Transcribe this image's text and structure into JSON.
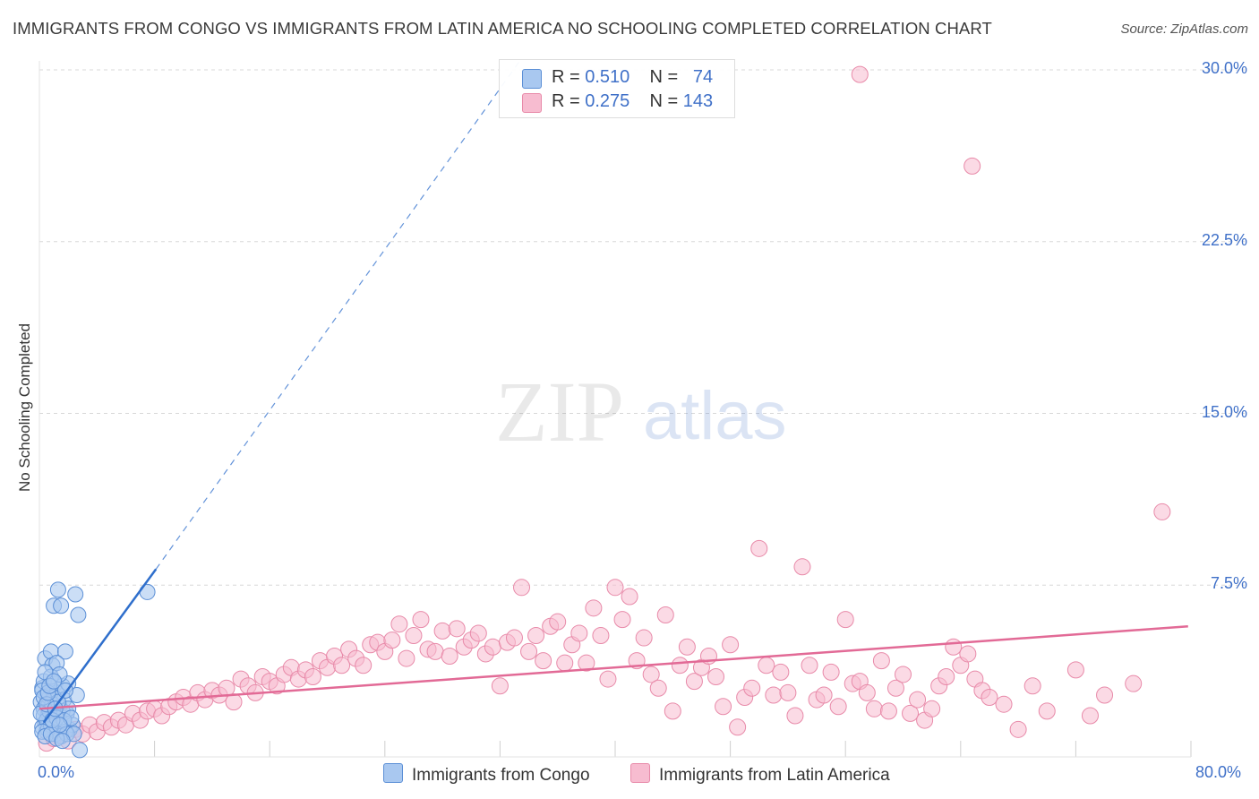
{
  "header": {
    "title": "IMMIGRANTS FROM CONGO VS IMMIGRANTS FROM LATIN AMERICA NO SCHOOLING COMPLETED CORRELATION CHART",
    "source": "Source: ZipAtlas.com"
  },
  "watermark": {
    "zip": "ZIP",
    "atlas": "atlas"
  },
  "legend": {
    "series": [
      {
        "r_label": "R =",
        "r_value": "0.510",
        "n_label": "N =",
        "n_value": "74"
      },
      {
        "r_label": "R =",
        "r_value": "0.275",
        "n_label": "N =",
        "n_value": "143"
      }
    ]
  },
  "colors": {
    "congo_fill": "#a9c8f0",
    "congo_stroke": "#5b8fd6",
    "congo_line": "#2f6fcc",
    "latam_fill": "#f7bcd0",
    "latam_stroke": "#e88aa9",
    "latam_line": "#e26a96",
    "grid": "#d8d8d8",
    "axis_text": "#3f70c8"
  },
  "chart_data": {
    "type": "scatter",
    "title": "IMMIGRANTS FROM CONGO VS IMMIGRANTS FROM LATIN AMERICA NO SCHOOLING COMPLETED CORRELATION CHART",
    "xlabel": "",
    "ylabel": "No Schooling Completed",
    "xlim": [
      0,
      80
    ],
    "ylim": [
      0,
      30
    ],
    "x_tick_labels": [
      "0.0%",
      "80.0%"
    ],
    "y_ticks": [
      7.5,
      15.0,
      22.5,
      30.0
    ],
    "y_tick_labels": [
      "7.5%",
      "15.0%",
      "22.5%",
      "30.0%"
    ],
    "grid": true,
    "legend_position": "bottom",
    "series": [
      {
        "name": "Immigrants from Congo",
        "R": 0.51,
        "N": 74,
        "trend": {
          "x": [
            0.3,
            8.1
          ],
          "y": [
            1.5,
            8.2
          ],
          "dashed_to": [
            33.5,
            30.5
          ]
        },
        "points": [
          [
            0.1,
            2.4
          ],
          [
            0.2,
            3.0
          ],
          [
            0.3,
            2.1
          ],
          [
            0.4,
            1.5
          ],
          [
            0.2,
            1.3
          ],
          [
            0.5,
            2.7
          ],
          [
            0.6,
            2.2
          ],
          [
            0.3,
            3.3
          ],
          [
            0.7,
            1.8
          ],
          [
            0.4,
            4.3
          ],
          [
            0.8,
            4.6
          ],
          [
            0.9,
            4.0
          ],
          [
            1.0,
            6.6
          ],
          [
            1.3,
            7.3
          ],
          [
            1.5,
            6.6
          ],
          [
            1.1,
            3.2
          ],
          [
            1.2,
            2.8
          ],
          [
            1.4,
            2.2
          ],
          [
            1.6,
            3.1
          ],
          [
            1.7,
            2.5
          ],
          [
            1.8,
            4.6
          ],
          [
            1.9,
            1.9
          ],
          [
            2.0,
            3.2
          ],
          [
            2.1,
            1.2
          ],
          [
            2.3,
            1.4
          ],
          [
            0.5,
            1.1
          ],
          [
            0.6,
            1.9
          ],
          [
            0.7,
            2.6
          ],
          [
            0.8,
            3.5
          ],
          [
            1.0,
            1.5
          ],
          [
            1.1,
            1.0
          ],
          [
            1.3,
            1.9
          ],
          [
            1.5,
            1.3
          ],
          [
            1.6,
            2.0
          ],
          [
            1.8,
            1.1
          ],
          [
            2.0,
            2.1
          ],
          [
            2.5,
            7.1
          ],
          [
            2.7,
            6.2
          ],
          [
            7.5,
            7.2
          ],
          [
            1.2,
            4.1
          ],
          [
            1.4,
            3.6
          ],
          [
            0.9,
            2.3
          ],
          [
            0.3,
            1.8
          ],
          [
            0.5,
            1.6
          ],
          [
            0.2,
            2.9
          ],
          [
            0.4,
            3.7
          ],
          [
            0.6,
            1.2
          ],
          [
            0.7,
            2.0
          ],
          [
            0.8,
            1.4
          ],
          [
            1.0,
            2.6
          ],
          [
            1.2,
            1.7
          ],
          [
            1.3,
            2.4
          ],
          [
            1.5,
            0.9
          ],
          [
            1.7,
            1.6
          ],
          [
            1.9,
            1.0
          ],
          [
            2.2,
            1.7
          ],
          [
            2.4,
            1.0
          ],
          [
            2.6,
            2.7
          ],
          [
            0.1,
            1.9
          ],
          [
            0.2,
            1.1
          ],
          [
            0.3,
            2.6
          ],
          [
            0.4,
            0.9
          ],
          [
            0.5,
            2.3
          ],
          [
            0.6,
            2.8
          ],
          [
            0.7,
            3.1
          ],
          [
            0.8,
            1.0
          ],
          [
            0.9,
            1.6
          ],
          [
            1.0,
            3.3
          ],
          [
            1.1,
            2.1
          ],
          [
            1.2,
            0.8
          ],
          [
            1.4,
            1.4
          ],
          [
            1.6,
            0.7
          ],
          [
            2.8,
            0.3
          ],
          [
            1.8,
            2.9
          ]
        ]
      },
      {
        "name": "Immigrants from Latin America",
        "R": 0.275,
        "N": 143,
        "trend": {
          "x": [
            0.0,
            79.8
          ],
          "y": [
            2.1,
            5.7
          ]
        },
        "points": [
          [
            0.5,
            0.6
          ],
          [
            1.0,
            0.8
          ],
          [
            1.5,
            1.0
          ],
          [
            2.0,
            0.7
          ],
          [
            2.5,
            1.2
          ],
          [
            3.0,
            1.0
          ],
          [
            3.5,
            1.4
          ],
          [
            4.0,
            1.1
          ],
          [
            4.5,
            1.5
          ],
          [
            5.0,
            1.3
          ],
          [
            5.5,
            1.6
          ],
          [
            6.0,
            1.4
          ],
          [
            6.5,
            1.9
          ],
          [
            7.0,
            1.6
          ],
          [
            7.5,
            2.0
          ],
          [
            8.0,
            2.1
          ],
          [
            8.5,
            1.8
          ],
          [
            9.0,
            2.2
          ],
          [
            9.5,
            2.4
          ],
          [
            10.0,
            2.6
          ],
          [
            10.5,
            2.3
          ],
          [
            11.0,
            2.8
          ],
          [
            11.5,
            2.5
          ],
          [
            12.0,
            2.9
          ],
          [
            12.5,
            2.7
          ],
          [
            13.0,
            3.0
          ],
          [
            13.5,
            2.4
          ],
          [
            14.0,
            3.4
          ],
          [
            14.5,
            3.1
          ],
          [
            15.0,
            2.8
          ],
          [
            15.5,
            3.5
          ],
          [
            16.0,
            3.3
          ],
          [
            16.5,
            3.1
          ],
          [
            17.0,
            3.6
          ],
          [
            17.5,
            3.9
          ],
          [
            18.0,
            3.4
          ],
          [
            18.5,
            3.8
          ],
          [
            19.0,
            3.5
          ],
          [
            19.5,
            4.2
          ],
          [
            20.0,
            3.9
          ],
          [
            20.5,
            4.4
          ],
          [
            21.0,
            4.0
          ],
          [
            21.5,
            4.7
          ],
          [
            22.0,
            4.3
          ],
          [
            22.5,
            4.0
          ],
          [
            23.0,
            4.9
          ],
          [
            23.5,
            5.0
          ],
          [
            24.0,
            4.6
          ],
          [
            24.5,
            5.1
          ],
          [
            25.0,
            5.8
          ],
          [
            25.5,
            4.3
          ],
          [
            26.0,
            5.3
          ],
          [
            26.5,
            6.0
          ],
          [
            27.0,
            4.7
          ],
          [
            27.5,
            4.6
          ],
          [
            28.0,
            5.5
          ],
          [
            28.5,
            4.4
          ],
          [
            29.0,
            5.6
          ],
          [
            29.5,
            4.8
          ],
          [
            30.0,
            5.1
          ],
          [
            30.5,
            5.4
          ],
          [
            31.0,
            4.5
          ],
          [
            31.5,
            4.8
          ],
          [
            32.0,
            3.1
          ],
          [
            32.5,
            5.0
          ],
          [
            33.0,
            5.2
          ],
          [
            33.5,
            7.4
          ],
          [
            34.0,
            4.6
          ],
          [
            34.5,
            5.3
          ],
          [
            35.0,
            4.2
          ],
          [
            35.5,
            5.7
          ],
          [
            36.0,
            5.9
          ],
          [
            36.5,
            4.1
          ],
          [
            37.0,
            4.9
          ],
          [
            37.5,
            5.4
          ],
          [
            38.0,
            4.1
          ],
          [
            38.5,
            6.5
          ],
          [
            39.0,
            5.3
          ],
          [
            39.5,
            3.4
          ],
          [
            40.0,
            7.4
          ],
          [
            40.5,
            6.0
          ],
          [
            41.0,
            7.0
          ],
          [
            41.5,
            4.2
          ],
          [
            42.0,
            5.2
          ],
          [
            42.5,
            3.6
          ],
          [
            43.0,
            3.0
          ],
          [
            43.5,
            6.2
          ],
          [
            44.0,
            2.0
          ],
          [
            44.5,
            4.0
          ],
          [
            45.0,
            4.8
          ],
          [
            45.5,
            3.3
          ],
          [
            46.0,
            3.9
          ],
          [
            46.5,
            4.4
          ],
          [
            47.0,
            3.5
          ],
          [
            47.5,
            2.2
          ],
          [
            48.0,
            4.9
          ],
          [
            48.5,
            1.3
          ],
          [
            49.0,
            2.6
          ],
          [
            49.5,
            3.0
          ],
          [
            50.0,
            9.1
          ],
          [
            50.5,
            4.0
          ],
          [
            51.0,
            2.7
          ],
          [
            51.5,
            3.7
          ],
          [
            52.0,
            2.8
          ],
          [
            52.5,
            1.8
          ],
          [
            53.0,
            8.3
          ],
          [
            53.5,
            4.0
          ],
          [
            54.0,
            2.5
          ],
          [
            54.5,
            2.7
          ],
          [
            55.0,
            3.7
          ],
          [
            55.5,
            2.2
          ],
          [
            56.0,
            6.0
          ],
          [
            56.5,
            3.2
          ],
          [
            57.0,
            3.3
          ],
          [
            57.5,
            2.8
          ],
          [
            58.0,
            2.1
          ],
          [
            58.5,
            4.2
          ],
          [
            59.0,
            2.0
          ],
          [
            59.5,
            3.0
          ],
          [
            60.0,
            3.6
          ],
          [
            60.5,
            1.9
          ],
          [
            61.0,
            2.5
          ],
          [
            61.5,
            1.6
          ],
          [
            62.0,
            2.1
          ],
          [
            62.5,
            3.1
          ],
          [
            63.0,
            3.5
          ],
          [
            63.5,
            4.8
          ],
          [
            64.0,
            4.0
          ],
          [
            64.5,
            4.5
          ],
          [
            65.0,
            3.4
          ],
          [
            65.5,
            2.9
          ],
          [
            66.0,
            2.6
          ],
          [
            67.0,
            2.3
          ],
          [
            69.0,
            3.1
          ],
          [
            70.0,
            2.0
          ],
          [
            72.0,
            3.8
          ],
          [
            73.0,
            1.8
          ],
          [
            74.0,
            2.7
          ],
          [
            76.0,
            3.2
          ],
          [
            78.0,
            10.7
          ],
          [
            57.0,
            29.8
          ],
          [
            64.8,
            25.8
          ],
          [
            68.0,
            1.2
          ]
        ]
      }
    ]
  },
  "bottom_legend": {
    "congo": "Immigrants from Congo",
    "latam": "Immigrants from Latin America"
  }
}
